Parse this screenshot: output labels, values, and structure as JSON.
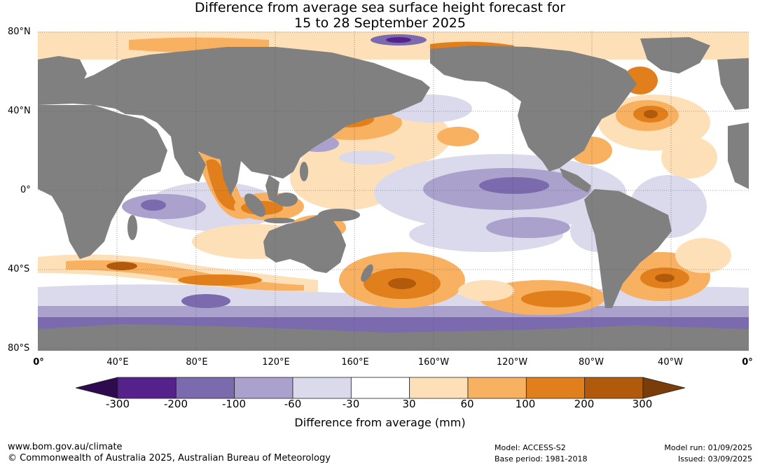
{
  "header": {
    "title_line1": "Difference from average sea surface height forecast for",
    "title_line2": "15 to 28 September 2025"
  },
  "axes": {
    "lat_labels": [
      "80°N",
      "40°N",
      "0°",
      "40°S",
      "80°S"
    ],
    "lon_labels": [
      "0°",
      "40°E",
      "80°E",
      "120°E",
      "160°E",
      "160°W",
      "120°W",
      "80°W",
      "40°W",
      "0°"
    ]
  },
  "legend": {
    "title": "Difference from average (mm)",
    "tick_labels": [
      "-300",
      "-200",
      "-100",
      "-60",
      "-30",
      "30",
      "60",
      "100",
      "200",
      "300"
    ],
    "colors": [
      "#2e0b4f",
      "#54228a",
      "#7b6aad",
      "#aaa1cc",
      "#dadaec",
      "#ffffff",
      "#fde0b8",
      "#f8b160",
      "#e07f1b",
      "#b15a0c",
      "#7a3c08"
    ]
  },
  "palette": {
    "land": "#808080",
    "ocean": "#ffffff"
  },
  "footer": {
    "url": "www.bom.gov.au/climate",
    "copyright": "© Commonwealth of Australia 2025, Australian Bureau of Meteorology",
    "model": "Model: ACCESS-S2",
    "base_period": "Base period: 1981-2018",
    "model_run": "Model run: 01/09/2025",
    "issued": "Issued: 03/09/2025"
  }
}
